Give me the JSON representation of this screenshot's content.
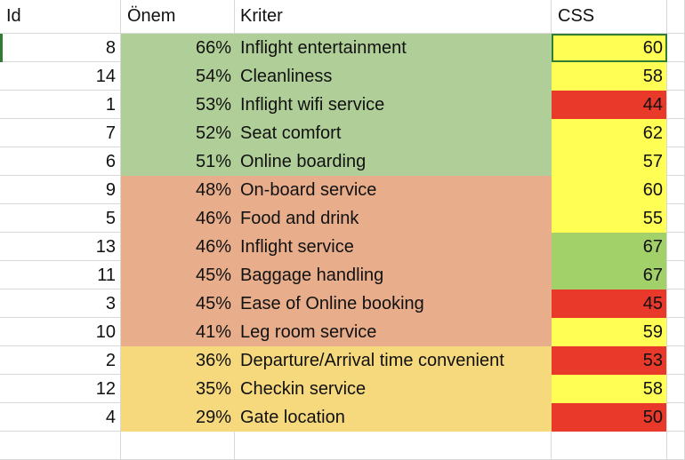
{
  "headers": {
    "id": "Id",
    "importance": "Önem",
    "criterion": "Kriter",
    "css": "CSS"
  },
  "colors": {
    "tier_high": "#b0cf98",
    "tier_mid": "#e8ae8c",
    "tier_low": "#f6d97d",
    "score_yellow": "#fefe55",
    "score_red": "#e8392a",
    "score_green": "#a2d16a"
  },
  "rows": [
    {
      "id": "8",
      "importance": "66%",
      "criterion": "Inflight entertainment",
      "css": "60",
      "tier": "high",
      "score_color": "yellow"
    },
    {
      "id": "14",
      "importance": "54%",
      "criterion": "Cleanliness",
      "css": "58",
      "tier": "high",
      "score_color": "yellow"
    },
    {
      "id": "1",
      "importance": "53%",
      "criterion": "Inflight wifi service",
      "css": "44",
      "tier": "high",
      "score_color": "red"
    },
    {
      "id": "7",
      "importance": "52%",
      "criterion": "Seat comfort",
      "css": "62",
      "tier": "high",
      "score_color": "yellow"
    },
    {
      "id": "6",
      "importance": "51%",
      "criterion": "Online boarding",
      "css": "57",
      "tier": "high",
      "score_color": "yellow"
    },
    {
      "id": "9",
      "importance": "48%",
      "criterion": "On-board service",
      "css": "60",
      "tier": "mid",
      "score_color": "yellow"
    },
    {
      "id": "5",
      "importance": "46%",
      "criterion": "Food and drink",
      "css": "55",
      "tier": "mid",
      "score_color": "yellow"
    },
    {
      "id": "13",
      "importance": "46%",
      "criterion": "Inflight service",
      "css": "67",
      "tier": "mid",
      "score_color": "green"
    },
    {
      "id": "11",
      "importance": "45%",
      "criterion": "Baggage handling",
      "css": "67",
      "tier": "mid",
      "score_color": "green"
    },
    {
      "id": "3",
      "importance": "45%",
      "criterion": "Ease of Online booking",
      "css": "45",
      "tier": "mid",
      "score_color": "red"
    },
    {
      "id": "10",
      "importance": "41%",
      "criterion": "Leg room service",
      "css": "59",
      "tier": "mid",
      "score_color": "yellow"
    },
    {
      "id": "2",
      "importance": "36%",
      "criterion": "Departure/Arrival time convenient",
      "css": "53",
      "tier": "low",
      "score_color": "red"
    },
    {
      "id": "12",
      "importance": "35%",
      "criterion": "Checkin service",
      "css": "58",
      "tier": "low",
      "score_color": "yellow"
    },
    {
      "id": "4",
      "importance": "29%",
      "criterion": "Gate location",
      "css": "50",
      "tier": "low",
      "score_color": "red"
    }
  ]
}
